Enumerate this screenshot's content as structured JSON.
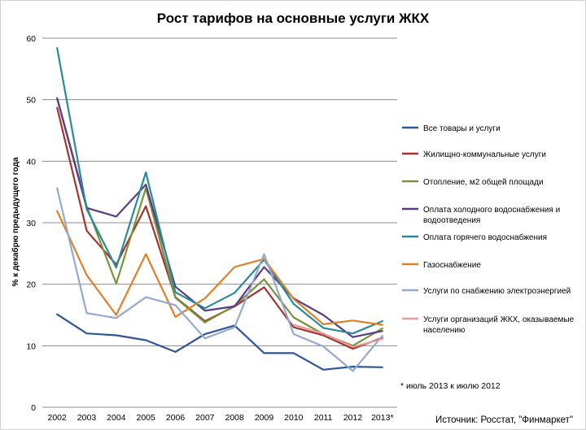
{
  "chart_data": {
    "type": "line",
    "title": "Рост тарифов на основные услуги ЖКХ",
    "ylabel": "% к декабрю предыдущего года",
    "xlabel": "",
    "categories": [
      "2002",
      "2003",
      "2004",
      "2005",
      "2006",
      "2007",
      "2008",
      "2009",
      "2010",
      "2011",
      "2012",
      "2013*"
    ],
    "ylim": [
      0,
      60
    ],
    "yticks": [
      0,
      10,
      20,
      30,
      40,
      50,
      60
    ],
    "grid": true,
    "legend_position": "right",
    "series": [
      {
        "name": "Все товары и услуги",
        "color": "#2f5597",
        "values": [
          15.1,
          12.0,
          11.7,
          10.9,
          9.0,
          11.9,
          13.3,
          8.8,
          8.8,
          6.1,
          6.6,
          6.5
        ]
      },
      {
        "name": "Жилищно-коммунальные услуги",
        "color": "#a5332e",
        "values": [
          48.7,
          28.7,
          23.2,
          32.7,
          17.9,
          14.0,
          16.4,
          19.5,
          13.0,
          11.7,
          9.5,
          11.3
        ]
      },
      {
        "name": "Отопление, м2 общей площади",
        "color": "#77933c",
        "values": [
          50.3,
          32.7,
          20.1,
          35.6,
          17.8,
          13.8,
          16.5,
          20.8,
          14.6,
          11.9,
          10.0,
          12.8
        ]
      },
      {
        "name": "Оплата холодного водоснабжения и водоотведения",
        "color": "#5b3b86",
        "values": [
          50.2,
          32.4,
          31.0,
          36.2,
          19.6,
          15.7,
          16.4,
          22.8,
          17.7,
          15.0,
          11.4,
          12.4
        ]
      },
      {
        "name": "Оплата горячего водоснабжения",
        "color": "#2a8a9a",
        "values": [
          58.4,
          32.2,
          22.7,
          38.2,
          18.7,
          16.1,
          18.6,
          24.0,
          16.8,
          12.9,
          12.0,
          14.0
        ]
      },
      {
        "name": "Газоснабжение",
        "color": "#e07f26",
        "values": [
          31.9,
          21.5,
          15.0,
          24.9,
          14.7,
          17.7,
          22.8,
          24.1,
          17.6,
          13.5,
          14.1,
          13.4
        ]
      },
      {
        "name": "Услуги по снабжению электроэнергией",
        "color": "#93a9cf",
        "values": [
          35.6,
          15.3,
          14.5,
          17.9,
          16.6,
          11.2,
          13.0,
          24.9,
          11.9,
          9.9,
          5.9,
          11.6
        ]
      },
      {
        "name": "Услуги организаций ЖКХ, оказываемые населению",
        "color": "#e49b9b",
        "values": [
          null,
          null,
          null,
          null,
          null,
          null,
          null,
          null,
          13.4,
          12.0,
          9.8,
          11.1
        ]
      }
    ],
    "legend_lines": [
      [
        "Все товары и услуги"
      ],
      [
        "Жилищно-коммунальные услуги"
      ],
      [
        "Отопление, м2 общей площади"
      ],
      [
        "Оплата холодного водоснабжения и",
        "водоотведения"
      ],
      [
        "Оплата горячего водоснабжения"
      ],
      [
        "Газоснабжение"
      ],
      [
        "Услуги по снабжению электроэнергией"
      ],
      [
        "Услуги организаций ЖКХ, оказываемые",
        "населению"
      ]
    ],
    "footnote": "* июль 2013 к июлю 2012",
    "source": "Источник: Росстат, \"Финмаркет\""
  }
}
